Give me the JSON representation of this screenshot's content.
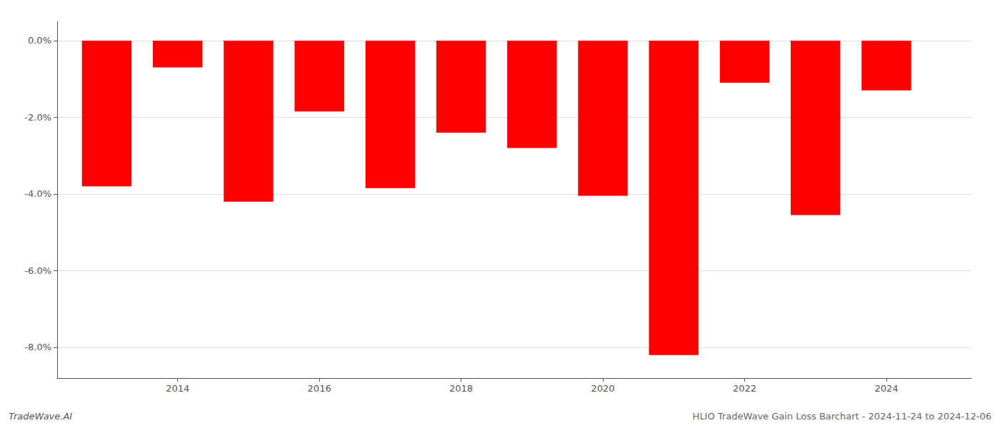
{
  "chart_data": {
    "type": "bar",
    "title": "HLIO TradeWave Gain Loss Barchart - 2024-11-24 to 2024-12-06",
    "annotations": [
      "TradeWave.AI"
    ],
    "x": [
      2013,
      2014,
      2015,
      2016,
      2017,
      2018,
      2019,
      2020,
      2021,
      2022,
      2023,
      2024
    ],
    "values": [
      -3.8,
      -0.7,
      -4.2,
      -1.85,
      -3.85,
      -2.4,
      -2.8,
      -4.05,
      -8.2,
      -1.1,
      -4.55,
      -1.3
    ],
    "color": "#ff0000",
    "xlim": [
      2012.3,
      2025.2
    ],
    "xticks": [
      2014,
      2016,
      2018,
      2020,
      2022,
      2024
    ],
    "ylim": [
      -8.8,
      0.5
    ],
    "yticks": [
      {
        "value": 0.0,
        "label": "0.0%"
      },
      {
        "value": -2.0,
        "label": "-2.0%"
      },
      {
        "value": -4.0,
        "label": "-4.0%"
      },
      {
        "value": -6.0,
        "label": "-6.0%"
      },
      {
        "value": -8.0,
        "label": "-8.0%"
      }
    ],
    "grid": true
  }
}
